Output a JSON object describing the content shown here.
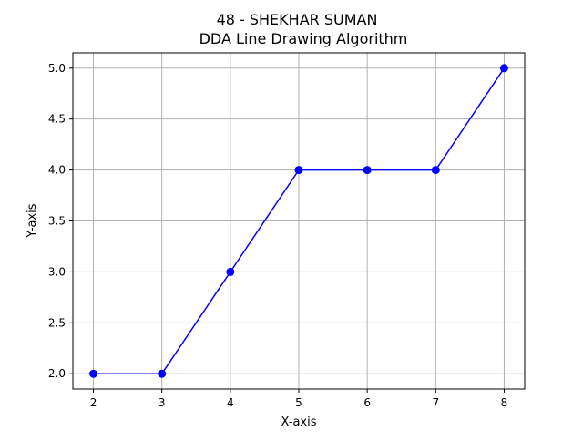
{
  "chart_data": {
    "type": "line",
    "title": "48 - SHEKHAR SUMAN\nDDA Line Drawing Algorithm",
    "title_lines": [
      "48 - SHEKHAR SUMAN",
      "DDA Line Drawing Algorithm"
    ],
    "xlabel": "X-axis",
    "ylabel": "Y-axis",
    "xlim": [
      1.7,
      8.3
    ],
    "ylim": [
      1.85,
      5.15
    ],
    "x_ticks": [
      2,
      3,
      4,
      5,
      6,
      7,
      8
    ],
    "y_ticks": [
      2.0,
      2.5,
      3.0,
      3.5,
      4.0,
      4.5,
      5.0
    ],
    "x_tick_labels": [
      "2",
      "3",
      "4",
      "5",
      "6",
      "7",
      "8"
    ],
    "y_tick_labels": [
      "2.0",
      "2.5",
      "3.0",
      "3.5",
      "4.0",
      "4.5",
      "5.0"
    ],
    "grid": true,
    "series": [
      {
        "x": [
          2,
          3,
          4,
          5,
          6,
          7,
          8
        ],
        "y": [
          2,
          2,
          3,
          4,
          4,
          4,
          5
        ],
        "color": "#0000ff",
        "marker": "circle"
      }
    ]
  }
}
